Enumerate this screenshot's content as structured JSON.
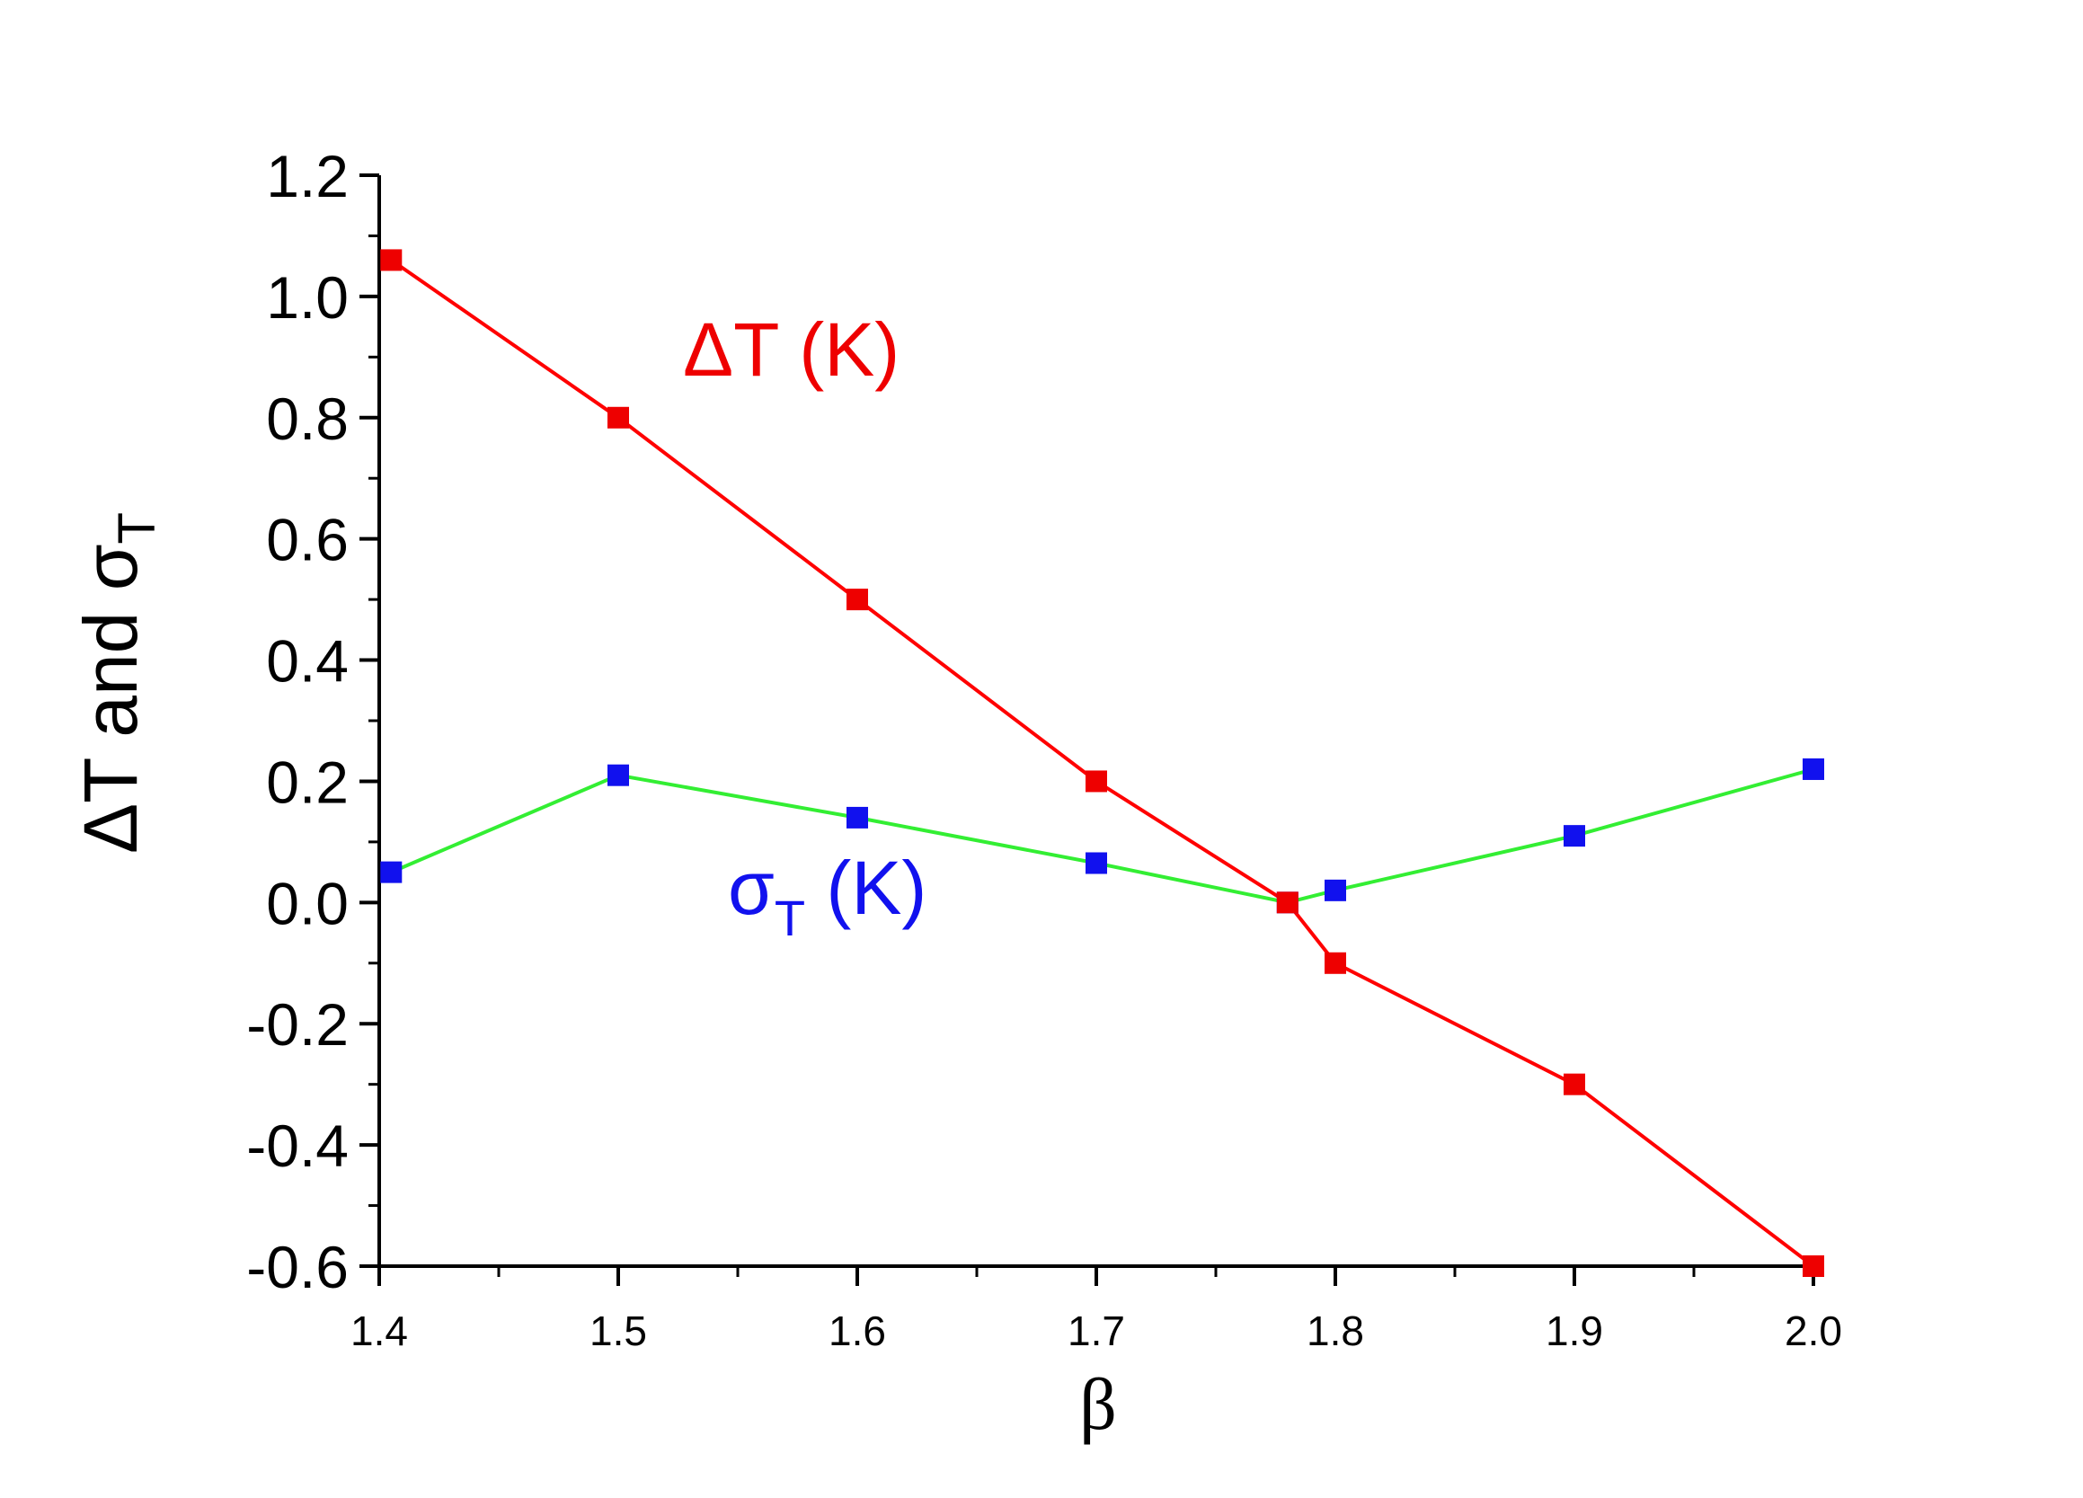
{
  "chart_data": {
    "type": "line",
    "xlabel": "β",
    "ylabel": "ΔT and σ",
    "ylabel_sub": "T",
    "xlim": [
      1.4,
      2.0
    ],
    "ylim": [
      -0.6,
      1.2
    ],
    "xticks": [
      "1.4",
      "1.5",
      "1.6",
      "1.7",
      "1.8",
      "1.9",
      "2.0"
    ],
    "yticks": [
      "-0.6",
      "-0.4",
      "-0.2",
      "0.0",
      "0.2",
      "0.4",
      "0.6",
      "0.8",
      "1.0",
      "1.2"
    ],
    "grid": false,
    "series": [
      {
        "name": "ΔT (K)",
        "line_color": "#ff0000",
        "marker_color": "#ee0000",
        "label_color": "#ee0000",
        "points": [
          {
            "x": 1.405,
            "y": 1.06
          },
          {
            "x": 1.5,
            "y": 0.8
          },
          {
            "x": 1.6,
            "y": 0.5
          },
          {
            "x": 1.7,
            "y": 0.2
          },
          {
            "x": 1.78,
            "y": 0.0
          },
          {
            "x": 1.8,
            "y": -0.1
          },
          {
            "x": 1.9,
            "y": -0.3
          },
          {
            "x": 2.0,
            "y": -0.6
          }
        ]
      },
      {
        "name": "σ",
        "name_sub": "T",
        "name_tail": " (K)",
        "line_color": "#33ee33",
        "marker_color": "#1111ee",
        "label_color": "#1111ee",
        "points": [
          {
            "x": 1.405,
            "y": 0.05
          },
          {
            "x": 1.5,
            "y": 0.21
          },
          {
            "x": 1.6,
            "y": 0.14
          },
          {
            "x": 1.7,
            "y": 0.065
          },
          {
            "x": 1.78,
            "y": 0.0
          },
          {
            "x": 1.8,
            "y": 0.02
          },
          {
            "x": 1.9,
            "y": 0.11
          },
          {
            "x": 2.0,
            "y": 0.22
          }
        ]
      }
    ]
  }
}
